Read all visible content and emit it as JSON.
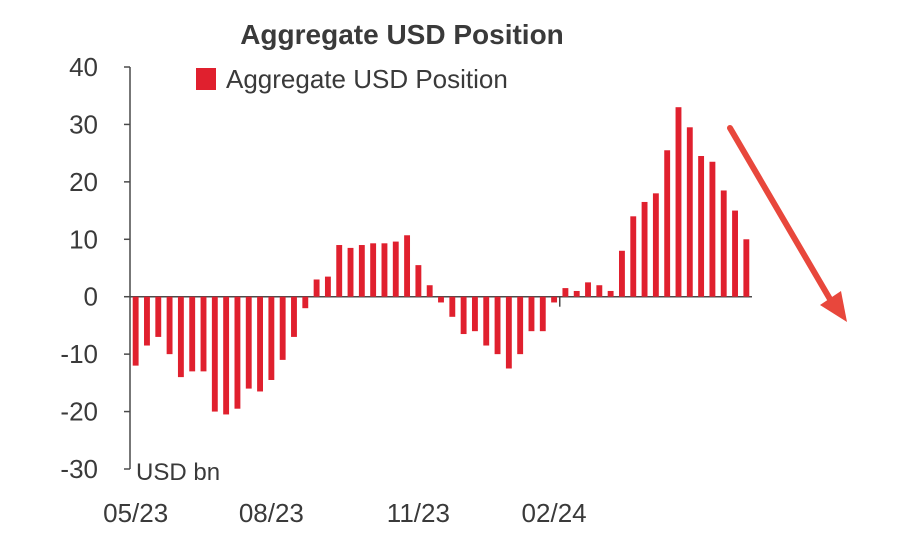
{
  "chart_data": {
    "type": "bar",
    "title": "Aggregate USD Position",
    "unit_label": "USD bn",
    "legend_position": "top",
    "grid": false,
    "ylim": [
      -30,
      40
    ],
    "y_ticks": [
      "-30",
      "-20",
      "-10",
      "0",
      "10",
      "20",
      "30",
      "40"
    ],
    "x_tick_labels": [
      {
        "label": "05/23",
        "index": 0
      },
      {
        "label": "08/23",
        "index": 12
      },
      {
        "label": "11/23",
        "index": 25
      },
      {
        "label": "02/24",
        "index": 37
      }
    ],
    "series": [
      {
        "name": "Aggregate USD Position",
        "color": "#e0202e",
        "values": [
          -12,
          -8.5,
          -7,
          -10,
          -14,
          -13,
          -13,
          -20,
          -20.5,
          -19.5,
          -16,
          -16.5,
          -14.5,
          -11,
          -7,
          -2,
          3,
          3.5,
          9,
          8.5,
          9,
          9.3,
          9.3,
          9.6,
          10.7,
          5.5,
          2,
          -1,
          -3.5,
          -6.5,
          -6,
          -8.5,
          -10,
          -12.5,
          -10,
          -6,
          -6,
          -1,
          1.5,
          1,
          2.5,
          2,
          1,
          8,
          14,
          16.5,
          18,
          25.5,
          33,
          29.5,
          24.5,
          23.5,
          18.5,
          15,
          10
        ]
      }
    ],
    "annotation": {
      "type": "arrow",
      "direction": "down",
      "color": "#e8473c"
    }
  }
}
